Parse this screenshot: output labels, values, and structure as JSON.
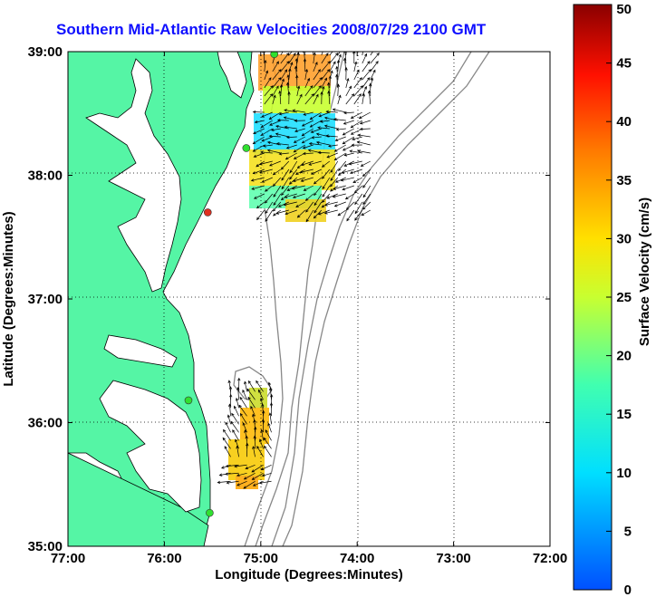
{
  "title": "Southern Mid-Atlantic Raw Velocities 2008/07/29 2100 GMT",
  "chart_data": {
    "type": "map",
    "xlabel": "Longitude (Degrees:Minutes)",
    "ylabel": "Latitude (Degrees:Minutes)",
    "x_ticks": [
      "77:00",
      "76:00",
      "75:00",
      "74:00",
      "73:00",
      "72:00"
    ],
    "x_values": [
      -77,
      -76,
      -75,
      -74,
      -73,
      -72
    ],
    "y_ticks": [
      "39:00",
      "38:00",
      "37:00",
      "36:00",
      "35:00"
    ],
    "y_values": [
      39,
      38,
      37,
      36,
      35
    ],
    "xlim": [
      -77,
      -72
    ],
    "ylim": [
      35,
      39
    ],
    "grid": true,
    "colorbar": {
      "label": "Surface Velocity (cm/s)",
      "range": [
        0,
        50
      ],
      "ticks": [
        "50",
        "45",
        "40",
        "35",
        "30",
        "25",
        "20",
        "15",
        "10",
        "5",
        "0"
      ],
      "colormap": "jet"
    },
    "land_color": "#55f5a5",
    "stations": [
      {
        "lon": -74.86,
        "lat": 38.98,
        "color": "#30e030"
      },
      {
        "lon": -75.15,
        "lat": 38.22,
        "color": "#30e030"
      },
      {
        "lon": -75.55,
        "lat": 37.7,
        "color": "#e03020"
      },
      {
        "lon": -75.75,
        "lat": 36.18,
        "color": "#30e030"
      },
      {
        "lon": -75.53,
        "lat": 35.27,
        "color": "#30e030"
      }
    ],
    "velocity_regions": [
      {
        "name": "northern",
        "lon_range": [
          -75.0,
          -73.85
        ],
        "lat_range": [
          37.7,
          39.0
        ],
        "speed_range_cms": [
          8,
          35
        ]
      },
      {
        "name": "southern",
        "lon_range": [
          -75.35,
          -74.85
        ],
        "lat_range": [
          35.5,
          36.28
        ],
        "speed_range_cms": [
          15,
          30
        ]
      }
    ]
  }
}
